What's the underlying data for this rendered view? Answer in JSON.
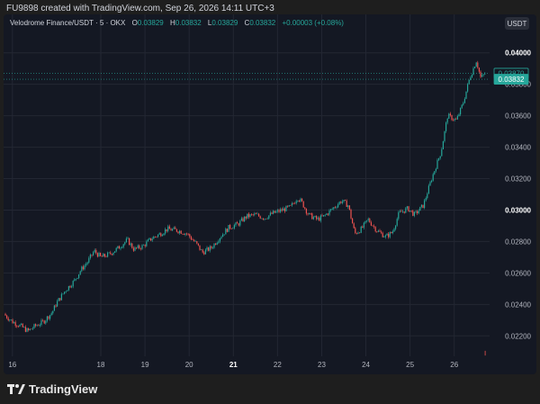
{
  "header": {
    "caption": "FU9898 created with TradingView.com, Sep 26, 2026 14:11 UTC+3"
  },
  "legend": {
    "symbol": "Velodrome Finance/USDT · 5 · OKX",
    "o_label": "O",
    "o_value": "0.03829",
    "h_label": "H",
    "h_value": "0.03832",
    "l_label": "L",
    "l_value": "0.03829",
    "c_label": "C",
    "c_value": "0.03832",
    "change": "+0.00003 (+0.08%)"
  },
  "currency_button": "USDT",
  "footer": {
    "brand": "TradingView"
  },
  "colors": {
    "up": "#26a69a",
    "down": "#ef5350",
    "background": "#141823",
    "grid": "#232733",
    "price_tag_up": "#26a69a",
    "bold_tick": "#ffffff"
  },
  "chart_data": {
    "type": "line",
    "title": "Velodrome Finance/USDT · 5 · OKX",
    "xlabel": "",
    "ylabel": "",
    "x_ticks": [
      "16",
      "18",
      "19",
      "20",
      "21",
      "22",
      "23",
      "24",
      "25",
      "26"
    ],
    "x_tick_bold": "21",
    "y_ticks": [
      "0.02200",
      "0.02400",
      "0.02600",
      "0.02800",
      "0.03000",
      "0.03200",
      "0.03400",
      "0.03600",
      "0.03800",
      "0.04000"
    ],
    "y_tick_bold": [
      "0.03000",
      "0.04000"
    ],
    "ylim": [
      0.0207,
      0.0413
    ],
    "xlim": [
      15.8,
      26.8
    ],
    "grid": true,
    "price_tags": [
      {
        "value": 0.0387,
        "text": "0.03870"
      },
      {
        "value": 0.03832,
        "text": "0.03832"
      }
    ],
    "series": [
      {
        "x": [
          15.8,
          16.0,
          16.2,
          16.35,
          16.5,
          16.7,
          16.9,
          17.0,
          17.2,
          17.4,
          17.55,
          17.7,
          17.85,
          18.0,
          18.2,
          18.4,
          18.6,
          18.75,
          18.95,
          19.15,
          19.35,
          19.5,
          19.75,
          19.95,
          20.15,
          20.3,
          20.5,
          20.7,
          20.9,
          21.1,
          21.3,
          21.5,
          21.7,
          21.9,
          22.1,
          22.3,
          22.45,
          22.55,
          22.7,
          22.9,
          23.05,
          23.25,
          23.45,
          23.6,
          23.75,
          23.9,
          24.05,
          24.25,
          24.45,
          24.6,
          24.75,
          24.95,
          25.1,
          25.3,
          25.5,
          25.7,
          25.85,
          26.05,
          26.2,
          26.35,
          26.5,
          26.6,
          26.7,
          26.8
        ],
        "y": [
          0.0234,
          0.0229,
          0.0226,
          0.0223,
          0.0226,
          0.0229,
          0.0235,
          0.0241,
          0.0249,
          0.0255,
          0.0262,
          0.0267,
          0.0274,
          0.027,
          0.0272,
          0.0276,
          0.0281,
          0.0275,
          0.0277,
          0.0282,
          0.0285,
          0.0288,
          0.0287,
          0.0285,
          0.0279,
          0.0273,
          0.0276,
          0.0283,
          0.0289,
          0.0291,
          0.0296,
          0.0297,
          0.0295,
          0.0298,
          0.03,
          0.0302,
          0.0308,
          0.0305,
          0.0297,
          0.0294,
          0.0296,
          0.0301,
          0.0306,
          0.0303,
          0.0285,
          0.0288,
          0.0294,
          0.0287,
          0.0283,
          0.0286,
          0.0298,
          0.0301,
          0.0297,
          0.0303,
          0.0321,
          0.0337,
          0.036,
          0.0357,
          0.0368,
          0.0384,
          0.0395,
          0.0384,
          0.0387,
          0.0383
        ]
      }
    ]
  }
}
